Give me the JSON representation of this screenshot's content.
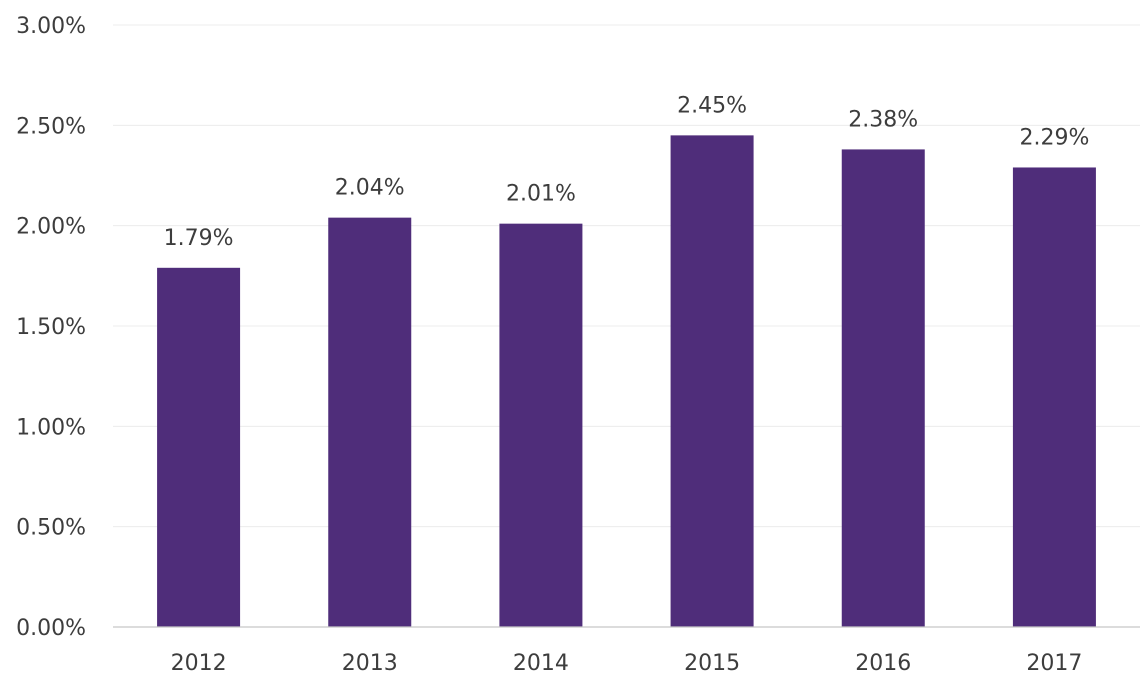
{
  "chart_data": {
    "type": "bar",
    "title": "",
    "xlabel": "",
    "ylabel": "",
    "categories": [
      "2012",
      "2013",
      "2014",
      "2015",
      "2016",
      "2017"
    ],
    "values": [
      1.79,
      2.04,
      2.01,
      2.45,
      2.38,
      2.29
    ],
    "data_labels": [
      "1.79%",
      "2.04%",
      "2.01%",
      "2.45%",
      "2.38%",
      "2.29%"
    ],
    "ylim": [
      0,
      3
    ],
    "yticks": [
      0,
      0.5,
      1,
      1.5,
      2,
      2.5,
      3
    ],
    "ytick_labels": [
      "0.00%",
      "0.50%",
      "1.00%",
      "1.50%",
      "2.00%",
      "2.50%",
      "3.00%"
    ],
    "bar_color": "#4f2d7a",
    "grid": true,
    "legend": "none"
  }
}
